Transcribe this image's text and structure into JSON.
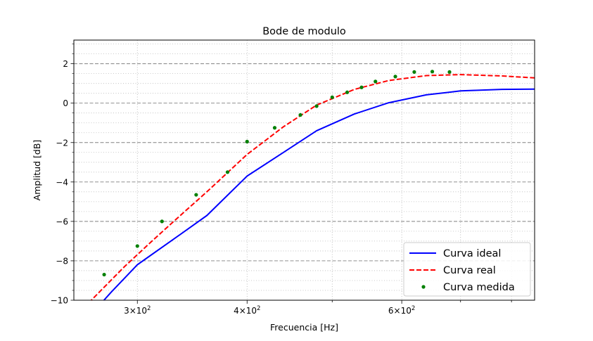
{
  "chart_data": {
    "type": "line",
    "title": "Bode de modulo",
    "xlabel": "Frecuencia [Hz]",
    "ylabel": "Amplitud [dB]",
    "xscale": "log",
    "xlim": [
      254,
      850
    ],
    "ylim": [
      -10,
      3.2
    ],
    "yticks": [
      -10,
      -8,
      -6,
      -4,
      -2,
      0,
      2
    ],
    "ytick_labels": [
      "−10",
      "−8",
      "−6",
      "−4",
      "−2",
      "0",
      "2"
    ],
    "xticks": [
      {
        "value": 300,
        "mantissa": "3",
        "base": "10",
        "exp": "2"
      },
      {
        "value": 400,
        "mantissa": "4",
        "base": "10",
        "exp": "2"
      },
      {
        "value": 600,
        "mantissa": "6",
        "base": "10",
        "exp": "2"
      }
    ],
    "grid": {
      "major": "dashed",
      "minor": "dotted"
    },
    "legend_position": "bottom-right",
    "series": [
      {
        "name": "Curva ideal",
        "style": "solid",
        "color": "#0000ff",
        "x": [
          260,
          280,
          300,
          330,
          360,
          400,
          440,
          480,
          530,
          580,
          640,
          700,
          780,
          850
        ],
        "y": [
          -11.2,
          -9.6,
          -8.2,
          -6.9,
          -5.7,
          -3.7,
          -2.5,
          -1.4,
          -0.55,
          0.02,
          0.42,
          0.62,
          0.7,
          0.71
        ]
      },
      {
        "name": "Curva real",
        "style": "dashed",
        "color": "#ff0000",
        "x": [
          254,
          270,
          290,
          310,
          330,
          360,
          400,
          440,
          480,
          530,
          580,
          640,
          700,
          780,
          850
        ],
        "y": [
          -10.9,
          -9.7,
          -8.3,
          -7.1,
          -6.0,
          -4.5,
          -2.6,
          -1.2,
          -0.1,
          0.7,
          1.15,
          1.4,
          1.45,
          1.38,
          1.28
        ]
      },
      {
        "name": "Curva medida",
        "style": "points",
        "color": "#008000",
        "x": [
          275,
          300,
          320,
          350,
          380,
          400,
          430,
          460,
          480,
          500,
          520,
          540,
          560,
          590,
          620,
          650,
          680
        ],
        "y": [
          -8.7,
          -7.25,
          -6.0,
          -4.65,
          -3.5,
          -1.95,
          -1.25,
          -0.6,
          -0.15,
          0.3,
          0.55,
          0.8,
          1.1,
          1.35,
          1.58,
          1.6,
          1.58
        ]
      }
    ]
  }
}
